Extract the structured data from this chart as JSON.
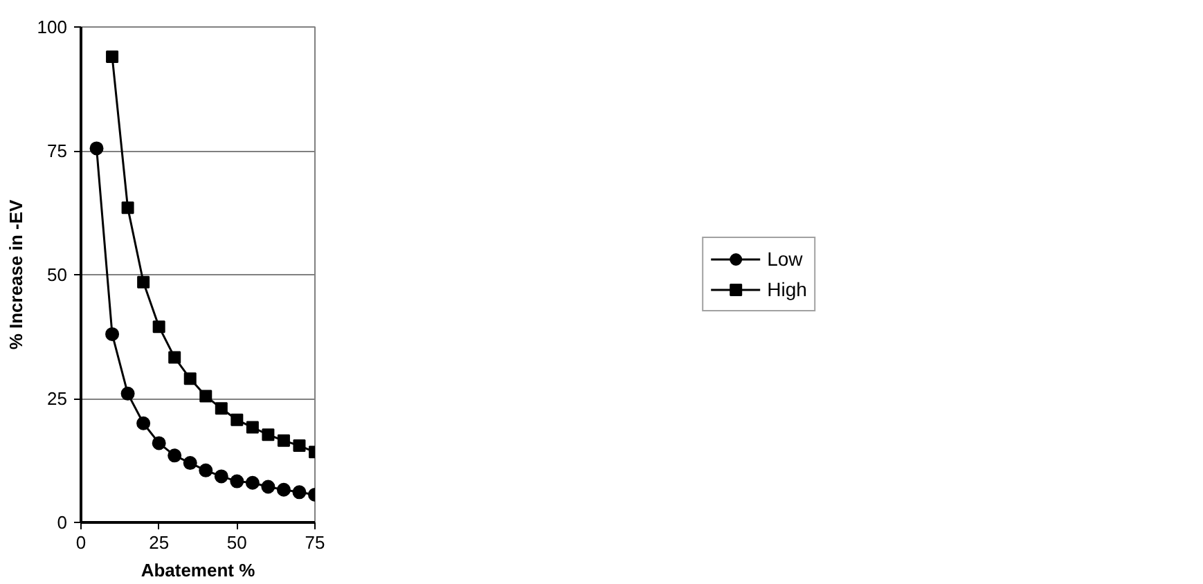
{
  "chart_data": {
    "type": "line",
    "xlabel": "Abatement %",
    "ylabel": "% Increase in -EV",
    "x": [
      5,
      10,
      15,
      20,
      25,
      30,
      35,
      40,
      45,
      50,
      55,
      60,
      65,
      70,
      75
    ],
    "series": [
      {
        "name": "Low",
        "color": "#000000",
        "marker": "circle",
        "values": [
          75.5,
          38,
          26,
          20,
          16,
          13.5,
          12,
          10.5,
          9.3,
          8.3,
          8,
          7.2,
          6.6,
          6.1,
          5.6
        ]
      },
      {
        "name": "High",
        "color": "#000000",
        "marker": "square",
        "values": [
          null,
          94,
          63.5,
          48.5,
          39.5,
          33.3,
          29,
          25.5,
          23,
          20.7,
          19.2,
          17.7,
          16.5,
          15.5,
          14.2
        ]
      }
    ],
    "xlim": [
      0,
      75
    ],
    "ylim": [
      0,
      100
    ],
    "xticks": [
      0,
      25,
      50,
      75
    ],
    "yticks": [
      0,
      25,
      50,
      75,
      100
    ],
    "grid": "y",
    "legend": "right",
    "line_style": "solid"
  }
}
